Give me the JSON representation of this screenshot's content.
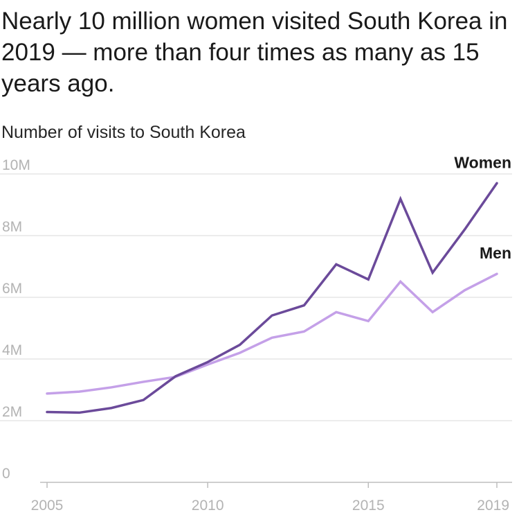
{
  "title": "Nearly 10 million women visited South Korea in 2019 — more than four times as many as 15 years ago.",
  "subtitle": "Number of visits to South Korea",
  "chart_data": {
    "type": "line",
    "x": [
      2005,
      2006,
      2007,
      2008,
      2009,
      2010,
      2011,
      2012,
      2013,
      2014,
      2015,
      2016,
      2017,
      2018,
      2019
    ],
    "xticks": [
      2005,
      2010,
      2015,
      2019
    ],
    "xtick_labels": [
      "2005",
      "2010",
      "2015",
      "2019"
    ],
    "yticks": [
      0,
      2000000,
      4000000,
      6000000,
      8000000,
      10000000
    ],
    "ytick_labels": [
      "0",
      "2M",
      "4M",
      "6M",
      "8M",
      "10M"
    ],
    "ylim": [
      0,
      10000000
    ],
    "xlim": [
      2005,
      2019
    ],
    "grid": "horizontal",
    "series": [
      {
        "name": "Women",
        "color": "#6b4a9a",
        "values": [
          2280000,
          2260000,
          2410000,
          2670000,
          3440000,
          3900000,
          4460000,
          5410000,
          5740000,
          7070000,
          6580000,
          9190000,
          6800000,
          8200000,
          9700000
        ]
      },
      {
        "name": "Men",
        "color": "#c4a0e8",
        "values": [
          2880000,
          2940000,
          3080000,
          3260000,
          3420000,
          3820000,
          4200000,
          4690000,
          4890000,
          5520000,
          5230000,
          6510000,
          5520000,
          6230000,
          6760000
        ]
      }
    ]
  }
}
